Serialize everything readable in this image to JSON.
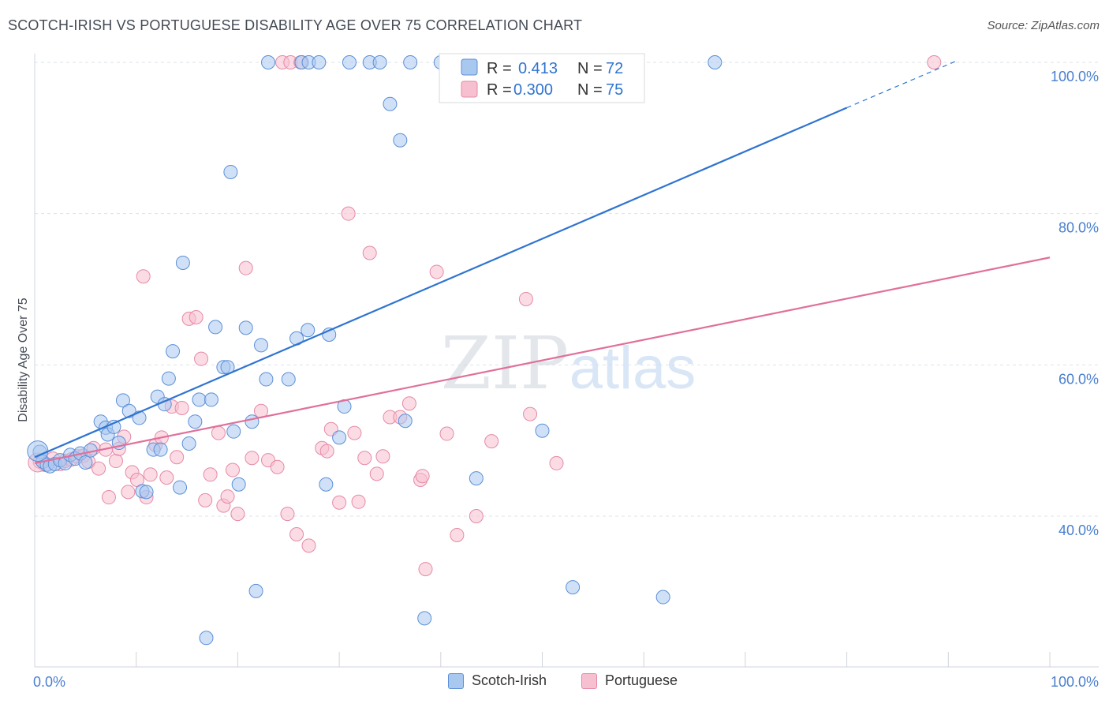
{
  "title": "SCOTCH-IRISH VS PORTUGUESE DISABILITY AGE OVER 75 CORRELATION CHART",
  "source": "Source: ZipAtlas.com",
  "watermark": {
    "zip": "ZIP",
    "atlas": "atlas"
  },
  "colors": {
    "blue_fill": "#a9c8f0",
    "blue_stroke": "#5b8fd8",
    "blue_line": "#2f74d0",
    "pink_fill": "#f7c0d0",
    "pink_stroke": "#e58aa6",
    "pink_line": "#e0709a",
    "tick_text": "#4a7fcf",
    "grid": "#dde3ea"
  },
  "legend": {
    "rows": [
      {
        "r_label": "R =",
        "r_value": "0.413",
        "n_label": "N =",
        "n_value": "72"
      },
      {
        "r_label": "R =",
        "r_value": "0.300",
        "n_label": "N =",
        "n_value": "75"
      }
    ]
  },
  "bottom_legend": {
    "items": [
      "Scotch-Irish",
      "Portuguese"
    ]
  },
  "chart_data": {
    "type": "scatter",
    "title": "SCOTCH-IRISH VS PORTUGUESE DISABILITY AGE OVER 75 CORRELATION CHART",
    "xlabel": "",
    "ylabel": "Disability Age Over 75",
    "xlim": [
      0,
      100
    ],
    "ylim": [
      20,
      102
    ],
    "x_tick_labels": [
      "0.0%",
      "100.0%"
    ],
    "y_ticks": [
      40,
      60,
      80,
      100
    ],
    "y_tick_labels": [
      "40.0%",
      "60.0%",
      "80.0%",
      "100.0%"
    ],
    "grid": true,
    "legend_placement": "top-center",
    "series": [
      {
        "name": "Scotch-Irish",
        "r": 0.413,
        "n": 72,
        "trend": {
          "x0": 0,
          "y0": 47.8,
          "x1": 80,
          "y1": 94.0,
          "dash_to_x": 91,
          "dash_to_y": 100.3
        },
        "points": [
          [
            0.5,
            48.5
          ],
          [
            0.8,
            47.2
          ],
          [
            1.2,
            46.8
          ],
          [
            1.5,
            46.6
          ],
          [
            2.0,
            46.9
          ],
          [
            2.5,
            47.4
          ],
          [
            3.0,
            47.0
          ],
          [
            3.5,
            48.1
          ],
          [
            4.0,
            47.6
          ],
          [
            4.5,
            48.3
          ],
          [
            5.0,
            47.1
          ],
          [
            5.5,
            48.7
          ],
          [
            6.5,
            52.5
          ],
          [
            7.0,
            51.7
          ],
          [
            7.2,
            50.8
          ],
          [
            7.8,
            51.8
          ],
          [
            8.3,
            49.7
          ],
          [
            8.7,
            55.3
          ],
          [
            9.3,
            53.9
          ],
          [
            10.3,
            53.0
          ],
          [
            10.6,
            43.3
          ],
          [
            11.0,
            43.2
          ],
          [
            11.7,
            48.8
          ],
          [
            12.1,
            55.8
          ],
          [
            12.4,
            48.8
          ],
          [
            12.8,
            54.8
          ],
          [
            13.2,
            58.2
          ],
          [
            13.6,
            61.8
          ],
          [
            14.3,
            43.8
          ],
          [
            14.6,
            73.5
          ],
          [
            15.2,
            49.6
          ],
          [
            15.8,
            52.5
          ],
          [
            16.2,
            55.4
          ],
          [
            16.9,
            23.9
          ],
          [
            17.4,
            55.4
          ],
          [
            17.8,
            65.0
          ],
          [
            18.6,
            59.7
          ],
          [
            19.0,
            59.7
          ],
          [
            19.3,
            85.5
          ],
          [
            19.6,
            51.2
          ],
          [
            20.1,
            44.2
          ],
          [
            20.8,
            64.9
          ],
          [
            21.4,
            52.5
          ],
          [
            21.8,
            30.1
          ],
          [
            22.3,
            62.6
          ],
          [
            22.8,
            58.1
          ],
          [
            23.0,
            100
          ],
          [
            25.0,
            58.1
          ],
          [
            25.8,
            63.5
          ],
          [
            26.3,
            100
          ],
          [
            26.9,
            64.6
          ],
          [
            27.0,
            100
          ],
          [
            28.0,
            100
          ],
          [
            28.7,
            44.2
          ],
          [
            29.0,
            64.0
          ],
          [
            30.0,
            50.4
          ],
          [
            30.5,
            54.5
          ],
          [
            31.0,
            100
          ],
          [
            33.0,
            100
          ],
          [
            34.0,
            100
          ],
          [
            35.0,
            94.5
          ],
          [
            36.0,
            89.7
          ],
          [
            36.5,
            52.6
          ],
          [
            37.0,
            100
          ],
          [
            38.4,
            26.5
          ],
          [
            40.0,
            100
          ],
          [
            43.0,
            100
          ],
          [
            43.5,
            45.0
          ],
          [
            50.0,
            51.3
          ],
          [
            53.0,
            30.6
          ],
          [
            61.9,
            29.3
          ],
          [
            67.0,
            100
          ]
        ]
      },
      {
        "name": "Portuguese",
        "r": 0.3,
        "n": 75,
        "trend": {
          "x0": 0,
          "y0": 47.0,
          "x1": 100,
          "y1": 74.2
        },
        "points": [
          [
            0.5,
            47.2
          ],
          [
            1.0,
            46.8
          ],
          [
            1.8,
            47.6
          ],
          [
            2.5,
            46.9
          ],
          [
            3.0,
            47.3
          ],
          [
            3.6,
            47.5
          ],
          [
            4.2,
            47.9
          ],
          [
            4.8,
            48.0
          ],
          [
            5.3,
            47.2
          ],
          [
            5.8,
            49.0
          ],
          [
            6.3,
            46.3
          ],
          [
            7.0,
            48.8
          ],
          [
            7.3,
            42.5
          ],
          [
            8.0,
            47.3
          ],
          [
            8.3,
            48.9
          ],
          [
            8.8,
            50.5
          ],
          [
            9.2,
            43.2
          ],
          [
            9.6,
            45.8
          ],
          [
            10.1,
            44.8
          ],
          [
            10.7,
            71.7
          ],
          [
            11.0,
            42.5
          ],
          [
            11.4,
            45.5
          ],
          [
            11.9,
            49.4
          ],
          [
            12.5,
            50.4
          ],
          [
            13.0,
            45.1
          ],
          [
            13.5,
            54.5
          ],
          [
            14.0,
            47.8
          ],
          [
            14.5,
            54.3
          ],
          [
            15.2,
            66.1
          ],
          [
            15.9,
            66.3
          ],
          [
            16.4,
            60.8
          ],
          [
            16.8,
            42.1
          ],
          [
            17.3,
            45.5
          ],
          [
            18.1,
            51.0
          ],
          [
            18.6,
            41.4
          ],
          [
            19.0,
            42.6
          ],
          [
            19.5,
            46.1
          ],
          [
            20.0,
            40.3
          ],
          [
            20.8,
            72.8
          ],
          [
            21.4,
            47.7
          ],
          [
            22.3,
            53.9
          ],
          [
            23.0,
            47.4
          ],
          [
            23.9,
            46.5
          ],
          [
            24.4,
            100
          ],
          [
            24.9,
            40.3
          ],
          [
            25.2,
            100
          ],
          [
            25.8,
            37.6
          ],
          [
            26.2,
            100
          ],
          [
            27.0,
            36.1
          ],
          [
            28.3,
            49.0
          ],
          [
            28.8,
            48.6
          ],
          [
            29.2,
            51.5
          ],
          [
            30.0,
            41.8
          ],
          [
            30.9,
            80.0
          ],
          [
            31.5,
            51.0
          ],
          [
            31.9,
            41.9
          ],
          [
            32.5,
            47.7
          ],
          [
            33.0,
            74.8
          ],
          [
            33.7,
            45.6
          ],
          [
            34.3,
            47.9
          ],
          [
            35.0,
            53.1
          ],
          [
            36.0,
            53.1
          ],
          [
            36.9,
            54.9
          ],
          [
            38.0,
            44.8
          ],
          [
            38.5,
            33.0
          ],
          [
            39.6,
            72.3
          ],
          [
            40.6,
            50.9
          ],
          [
            41.6,
            37.5
          ],
          [
            43.5,
            40.0
          ],
          [
            45.0,
            49.9
          ],
          [
            48.4,
            68.7
          ],
          [
            48.8,
            53.5
          ],
          [
            51.4,
            47.0
          ],
          [
            88.6,
            100
          ],
          [
            38.2,
            45.3
          ]
        ]
      }
    ]
  }
}
